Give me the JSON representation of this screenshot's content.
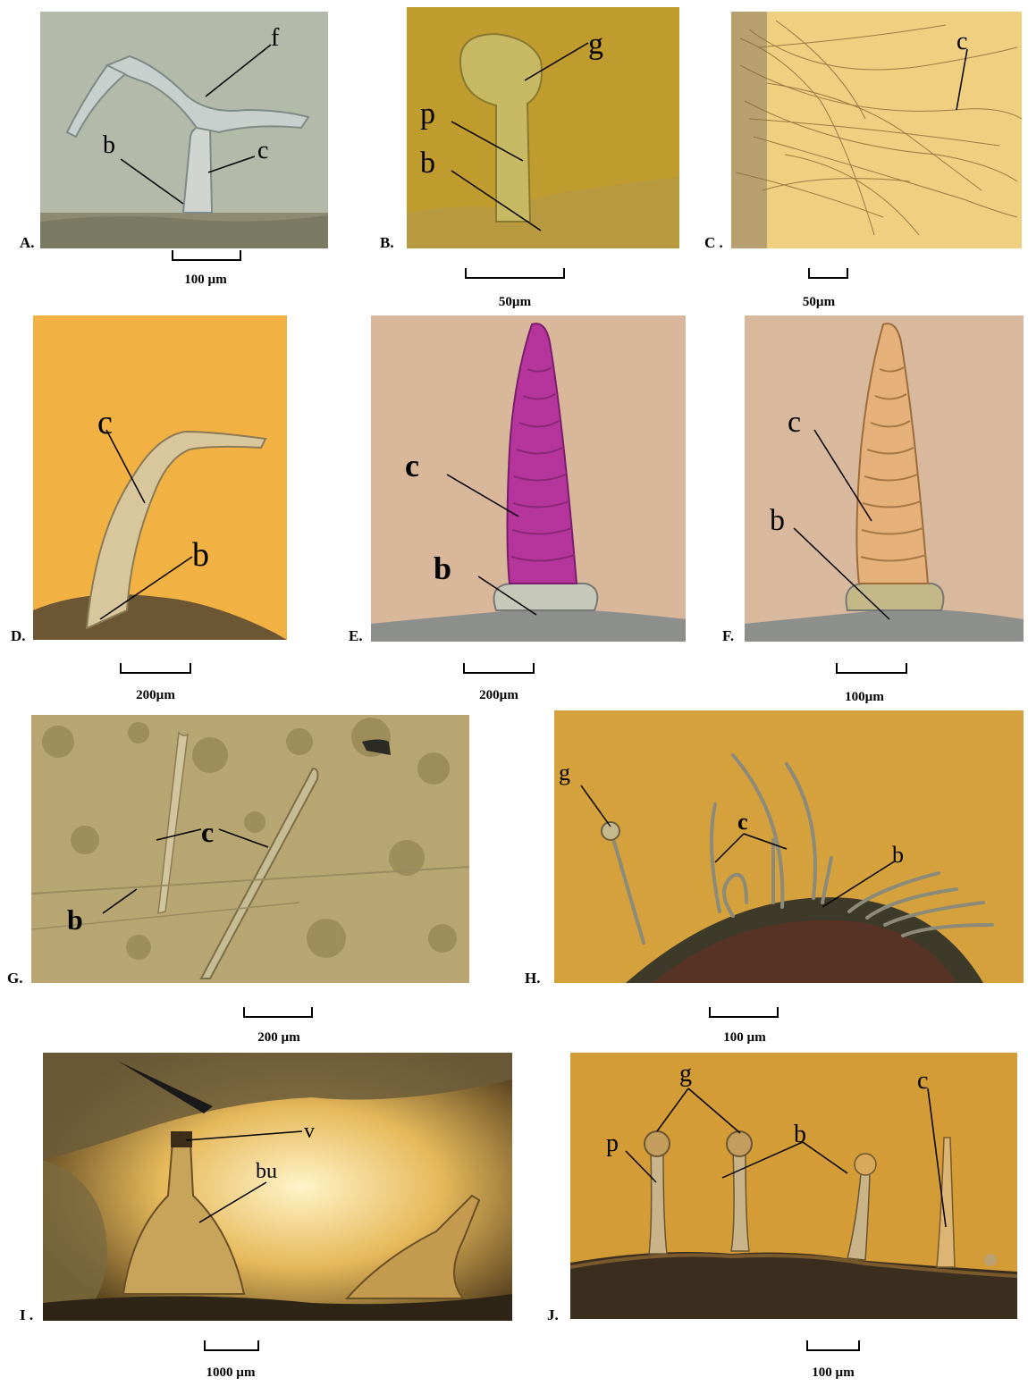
{
  "panels": {
    "A": {
      "label": "A.",
      "scale": "100 µm",
      "annotations": [
        "f",
        "b",
        "c"
      ]
    },
    "B": {
      "label": "B.",
      "scale": "50µm",
      "annotations": [
        "g",
        "p",
        "b"
      ]
    },
    "C": {
      "label": "C .",
      "scale": "50µm",
      "annotations": [
        "c"
      ]
    },
    "D": {
      "label": "D.",
      "scale": "200µm",
      "annotations": [
        "c",
        "b"
      ]
    },
    "E": {
      "label": "E.",
      "scale": "200µm",
      "annotations": [
        "c",
        "b"
      ]
    },
    "F": {
      "label": "F.",
      "scale": "100µm",
      "annotations": [
        "c",
        "b"
      ]
    },
    "G": {
      "label": "G.",
      "scale": "200 µm",
      "annotations": [
        "c",
        "b"
      ]
    },
    "H": {
      "label": "H.",
      "scale": "100 µm",
      "annotations": [
        "g",
        "c",
        "b"
      ]
    },
    "I": {
      "label": "I .",
      "scale": "1000 µm",
      "annotations": [
        "v",
        "bu"
      ]
    },
    "J": {
      "label": "J.",
      "scale": "100 µm",
      "annotations": [
        "g",
        "p",
        "b",
        "c"
      ]
    }
  },
  "colors": {
    "background": "#ffffff",
    "amber": "#e8b24a",
    "grey_field": "#b9bfae",
    "magenta": "#b7309a",
    "label": "#000000"
  }
}
